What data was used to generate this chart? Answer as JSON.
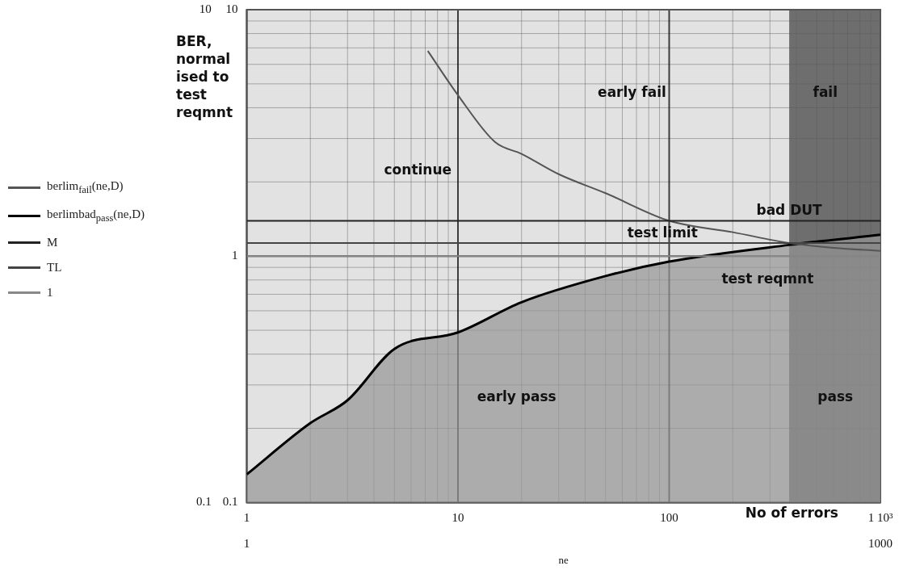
{
  "chart_data": {
    "type": "line",
    "y2label": "BER, normal ised to test reqmnt",
    "xlabel": "ne",
    "log": "xy",
    "grid": true,
    "legend": "left",
    "xlim": [
      1,
      1000
    ],
    "xticks": [
      1,
      10,
      100,
      {
        "value": 1000,
        "label": "1 10³"
      }
    ],
    "ylim": [
      0.1,
      10
    ],
    "yticks": [
      0.1,
      1,
      10
    ],
    "x2lim": [
      1,
      1000
    ],
    "x2ticks": [
      1,
      1000
    ],
    "y2lim": [
      0.1,
      10
    ],
    "y2ticks": [
      0.1,
      10
    ],
    "series": [
      {
        "name": "berlim$_{fail}$(ne,D)",
        "type": "line",
        "color": "#555555",
        "x": [
          7.2,
          10,
          15,
          20,
          30,
          50,
          100,
          200,
          370,
          600,
          1000
        ],
        "values": [
          6.8,
          4.5,
          2.9,
          2.6,
          2.15,
          1.8,
          1.39,
          1.25,
          1.13,
          1.08,
          1.05
        ]
      },
      {
        "name": "berlimbad$_{pass}$(ne,D)",
        "type": "area",
        "color": "#000000",
        "x": [
          1,
          2,
          3,
          5,
          10,
          20,
          50,
          100,
          370,
          1000
        ],
        "values": [
          0.13,
          0.21,
          0.26,
          0.42,
          0.49,
          0.65,
          0.83,
          0.95,
          1.11,
          1.22
        ]
      },
      {
        "name": "M",
        "type": "line",
        "color": "#222222",
        "x": [
          1,
          1000
        ],
        "values": [
          1.39,
          1.39
        ]
      },
      {
        "name": "TL",
        "type": "line",
        "color": "#444444",
        "x": [
          1,
          1000
        ],
        "values": [
          1.13,
          1.13
        ]
      },
      {
        "name": "1",
        "type": "line",
        "color": "#888888",
        "x": [
          1,
          1000
        ],
        "values": [
          1,
          1
        ]
      }
    ],
    "bands": [
      {
        "axis": "x",
        "from": 370,
        "to": 1000,
        "color": "#6e6e6e"
      }
    ],
    "annotations": [
      "continue",
      "early fail",
      "fail",
      {
        "text": "bad DUT",
        "x": 370,
        "y": 1.39
      },
      {
        "text": "test limit",
        "x": 93,
        "y": 1.13
      },
      "test reqmnt",
      "early pass",
      "pass",
      "No of errors"
    ]
  }
}
